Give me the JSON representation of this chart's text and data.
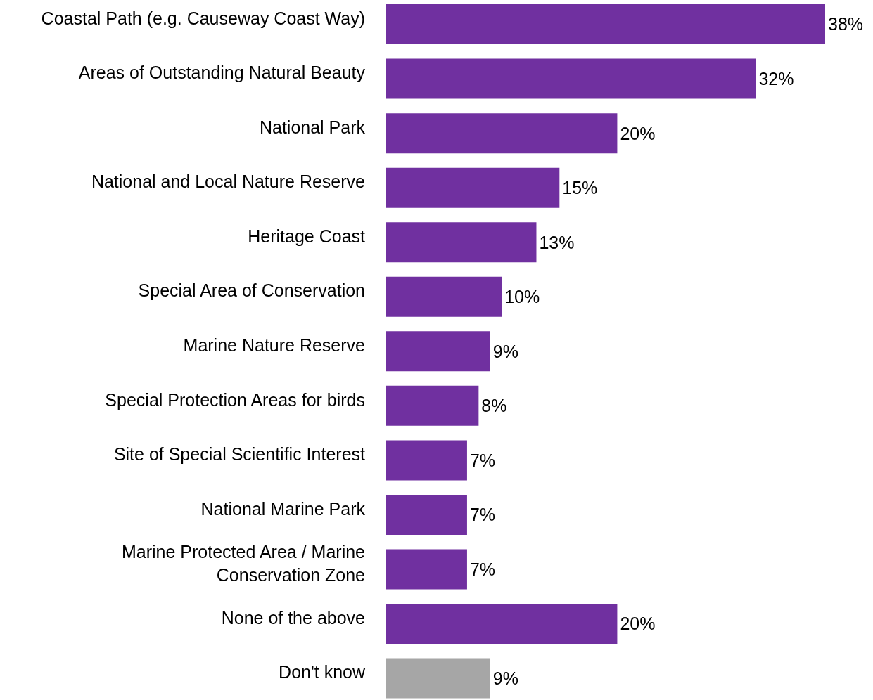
{
  "chart_data": {
    "type": "bar",
    "orientation": "horizontal",
    "categories": [
      "Coastal Path (e.g. Causeway Coast Way)",
      "Areas of Outstanding Natural Beauty",
      "National Park",
      "National and Local Nature Reserve",
      "Heritage Coast",
      "Special Area of Conservation",
      "Marine Nature Reserve",
      "Special Protection Areas for birds",
      "Site of Special Scientific Interest",
      "National Marine Park",
      "Marine Protected Area / Marine Conservation Zone",
      "None of the above",
      "Don't know"
    ],
    "values": [
      38,
      32,
      20,
      15,
      13,
      10,
      9,
      8,
      7,
      7,
      7,
      20,
      9
    ],
    "value_labels": [
      "38%",
      "32%",
      "20%",
      "15%",
      "13%",
      "10%",
      "9%",
      "8%",
      "7%",
      "7%",
      "7%",
      "20%",
      "9%"
    ],
    "colors": [
      "#7030a0",
      "#7030a0",
      "#7030a0",
      "#7030a0",
      "#7030a0",
      "#7030a0",
      "#7030a0",
      "#7030a0",
      "#7030a0",
      "#7030a0",
      "#7030a0",
      "#7030a0",
      "#a6a6a6"
    ],
    "grid": false,
    "legend": false
  }
}
